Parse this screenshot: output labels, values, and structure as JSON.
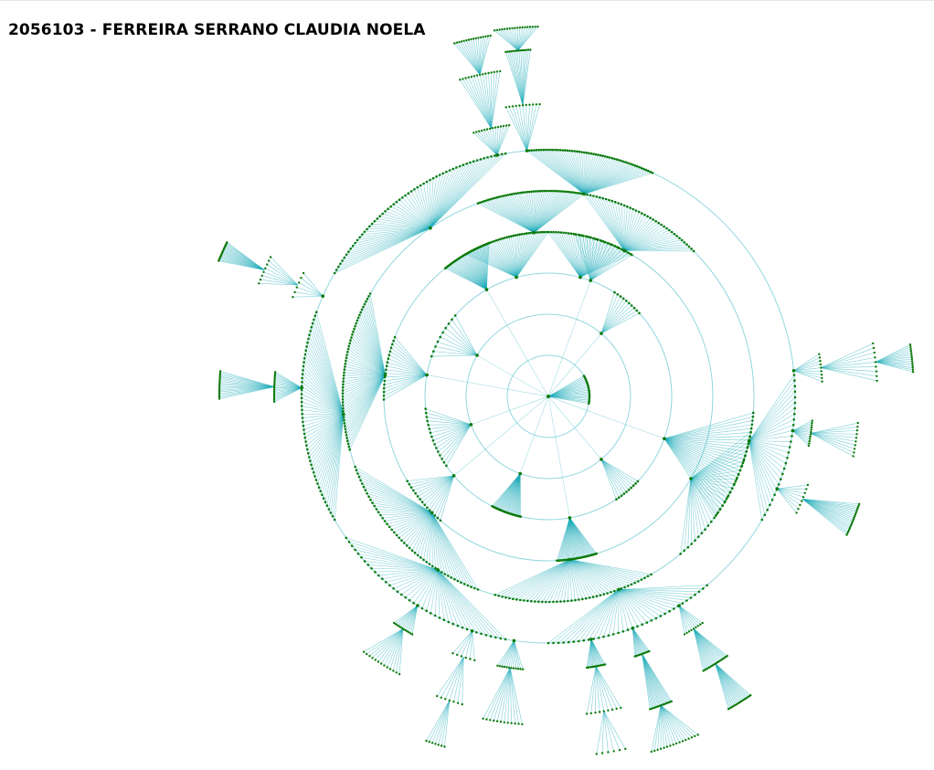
{
  "page": {
    "title": "2056103 - FERREIRA SERRANO CLAUDIA NOELA"
  },
  "colors": {
    "link": "#1aaab8",
    "node": "#0c7a0c",
    "ring": "#7fd0d8",
    "background": "#ffffff"
  },
  "tree": {
    "type": "radial-tree",
    "depth_rings": 5,
    "node_label_text": "none visible"
  }
}
